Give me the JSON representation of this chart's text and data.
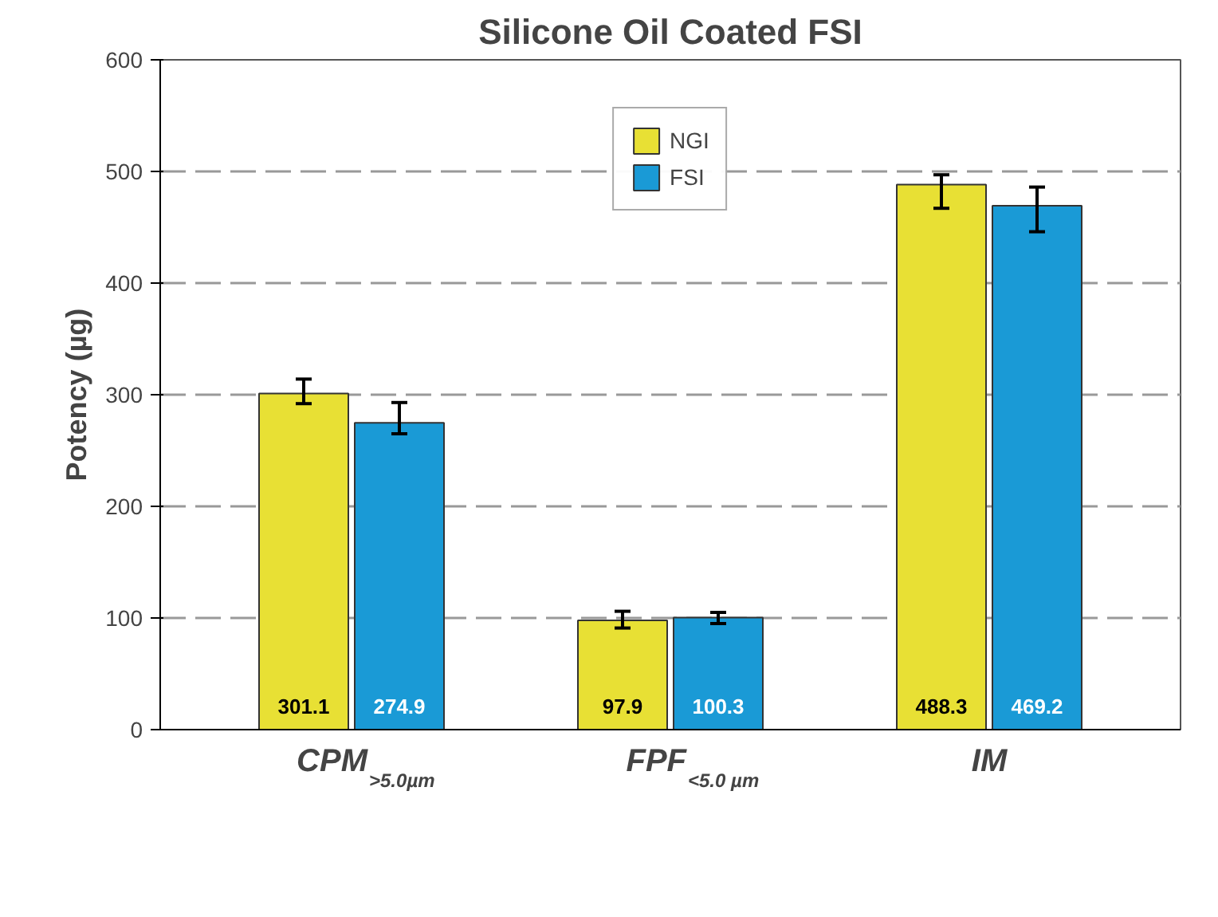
{
  "chart_data": {
    "type": "bar",
    "title": "Silicone Oil Coated FSI",
    "ylabel": "Potency (µg)",
    "categories": [
      "CPM$_{>5.0µm}$",
      "FPF$_{<5.0 µm}$",
      "IM"
    ],
    "series": [
      {
        "name": "NGI",
        "color": "#e8e034",
        "values": [
          301.1,
          97.9,
          488.3
        ],
        "errors": [
          [
            292,
            314
          ],
          [
            91,
            106
          ],
          [
            467,
            497
          ]
        ],
        "value_labels": [
          "301.1",
          "97.9",
          "488.3"
        ]
      },
      {
        "name": "FSI",
        "color": "#1a9ad6",
        "values": [
          274.9,
          100.3,
          469.2
        ],
        "errors": [
          [
            265,
            293
          ],
          [
            95,
            105
          ],
          [
            446,
            486
          ]
        ],
        "value_labels": [
          "274.9",
          "100.3",
          "469.2"
        ]
      }
    ],
    "ylim": [
      0,
      600
    ],
    "yticks": [
      0,
      100,
      200,
      300,
      400,
      500,
      600
    ],
    "grid": "y",
    "legend": "top"
  }
}
